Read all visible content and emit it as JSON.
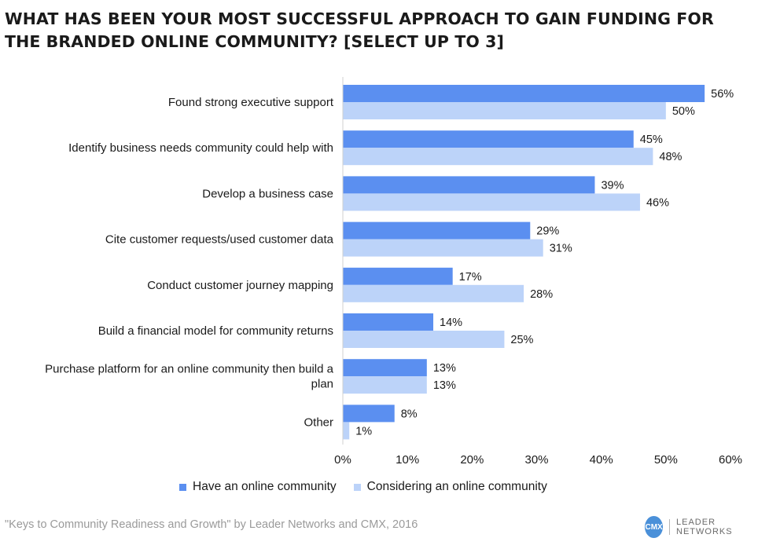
{
  "chart_data": {
    "type": "bar",
    "orientation": "horizontal",
    "title": "WHAT HAS BEEN YOUR MOST SUCCESSFUL APPROACH TO GAIN FUNDING FOR THE BRANDED ONLINE COMMUNITY? [SELECT UP TO 3]",
    "categories": [
      [
        "Found strong executive support"
      ],
      [
        "Identify business needs community could help with"
      ],
      [
        "Develop a business case"
      ],
      [
        "Cite customer requests/used customer data"
      ],
      [
        "Conduct customer journey mapping"
      ],
      [
        "Build a financial model for community returns"
      ],
      [
        "Purchase platform for an online community then build a",
        "plan"
      ],
      [
        "Other"
      ]
    ],
    "series": [
      {
        "name": "Have an online community",
        "color": "#5b8ff0",
        "values": [
          56,
          45,
          39,
          29,
          17,
          14,
          13,
          8
        ]
      },
      {
        "name": "Considering an online community",
        "color": "#bcd3f9",
        "values": [
          50,
          48,
          46,
          31,
          28,
          25,
          13,
          1
        ]
      }
    ],
    "value_suffix": "%",
    "xlim": [
      0,
      60
    ],
    "xticks": [
      "0%",
      "10%",
      "20%",
      "30%",
      "40%",
      "50%",
      "60%"
    ],
    "grid": false,
    "legend_position": "bottom-left"
  },
  "source": "\"Keys to Community Readiness and Growth\" by Leader Networks and CMX, 2016",
  "logo": {
    "mark": "CMX",
    "text": "LEADER NETWORKS",
    "color": "#4a90d9"
  }
}
